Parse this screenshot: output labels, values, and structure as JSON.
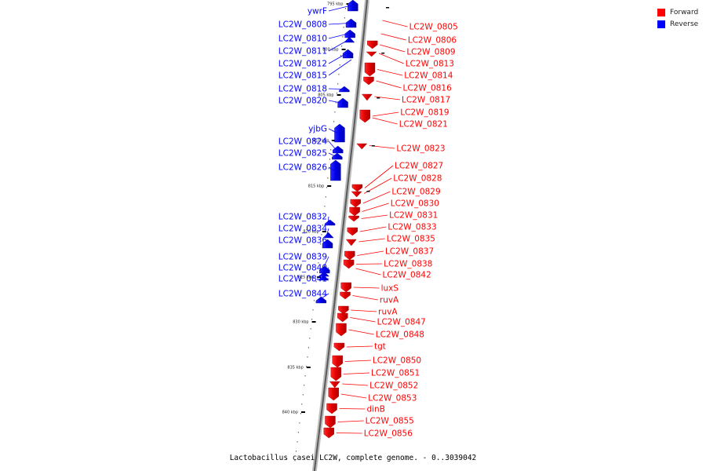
{
  "caption": "Lactobacillus casei LC2W, complete genome. - 0..3039042",
  "legend": [
    {
      "label": "Forward",
      "color": "#ff0000"
    },
    {
      "label": "Reverse",
      "color": "#0000ff"
    }
  ],
  "ticks": [
    "795 kbp",
    "800 kbp",
    "805 kbp",
    "810 kbp",
    "815 kbp",
    "820 kbp",
    "825 kbp",
    "830 kbp",
    "835 kbp",
    "840 kbp"
  ],
  "genes": {
    "forward": [
      "LC2W_0805",
      "LC2W_0806",
      "LC2W_0809",
      "LC2W_0813",
      "LC2W_0814",
      "LC2W_0816",
      "LC2W_0817",
      "LC2W_0819",
      "LC2W_0821",
      "LC2W_0823",
      "LC2W_0827",
      "LC2W_0828",
      "LC2W_0829",
      "LC2W_0830",
      "LC2W_0831",
      "LC2W_0833",
      "LC2W_0835",
      "LC2W_0837",
      "LC2W_0838",
      "LC2W_0842",
      "luxS",
      "ruvA",
      "ruvA",
      "LC2W_0847",
      "LC2W_0848",
      "tgt",
      "LC2W_0850",
      "LC2W_0851",
      "LC2W_0852",
      "LC2W_0853",
      "dinB",
      "LC2W_0855",
      "LC2W_0856"
    ],
    "reverse": [
      "ywrF",
      "LC2W_0808",
      "LC2W_0810",
      "LC2W_0811",
      "LC2W_0812",
      "LC2W_0815",
      "LC2W_0818",
      "LC2W_0820",
      "yjbG",
      "LC2W_0824",
      "LC2W_0825",
      "LC2W_0826",
      "LC2W_0832",
      "LC2W_0834",
      "LC2W_0836",
      "LC2W_0839",
      "LC2W_0840",
      "LC2W_0841",
      "LC2W_0844"
    ]
  }
}
